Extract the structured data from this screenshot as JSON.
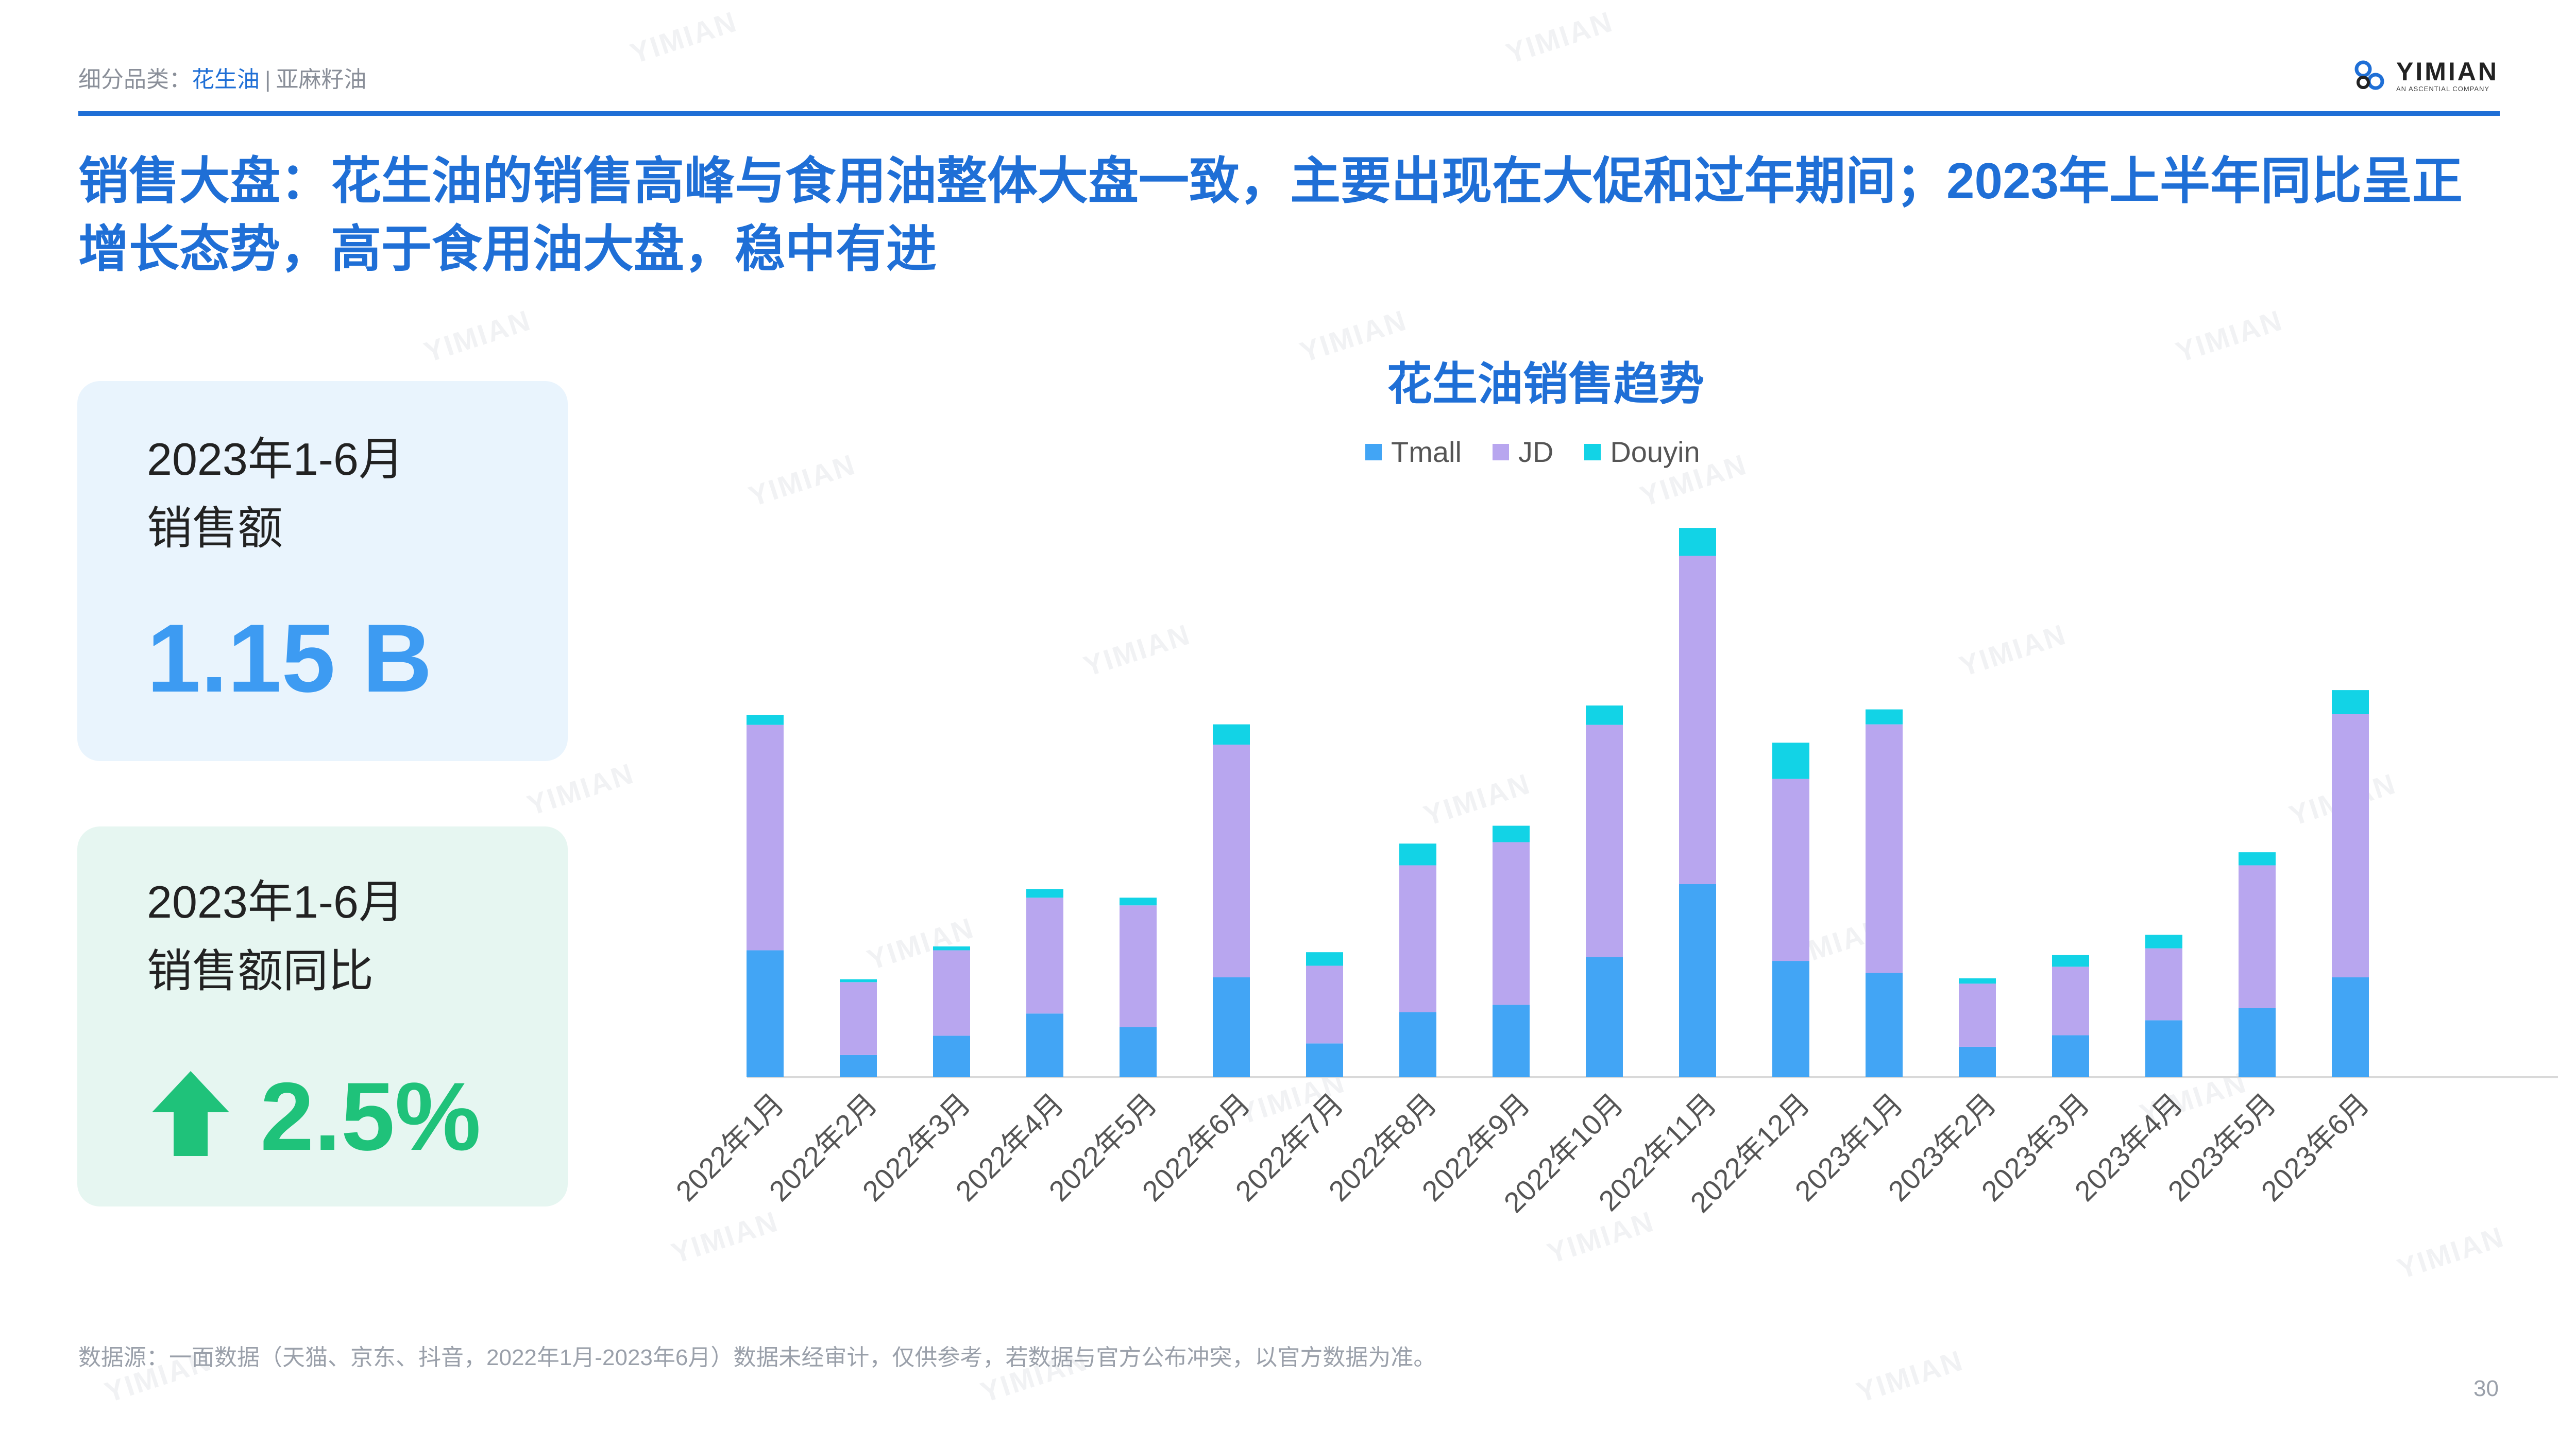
{
  "breadcrumb": {
    "prefix": "细分品类：",
    "active": "花生油",
    "separator": "|",
    "other": "亚麻籽油"
  },
  "brand": {
    "name": "YIMIAN",
    "tagline": "AN ASCENTIAL COMPANY",
    "watermark": "YIMIAN"
  },
  "headline": "销售大盘：花生油的销售高峰与食用油整体大盘一致，主要出现在大促和过年期间；2023年上半年同比呈正增长态势，高于食用油大盘，稳中有进",
  "cards": [
    {
      "label_line1": "2023年1-6月",
      "label_line2": "销售额",
      "value": "1.15 B"
    },
    {
      "label_line1": "2023年1-6月",
      "label_line2": "销售额同比",
      "value": "2.5%",
      "icon": "up-arrow-icon"
    }
  ],
  "colors": {
    "Tmall": "#42a5f5",
    "JD": "#b8a6ef",
    "Douyin": "#12d3e6",
    "accent": "#1f6fd6",
    "positive": "#1fc27a"
  },
  "chart_data": {
    "type": "bar",
    "stacked": true,
    "title": "花生油销售趋势",
    "legend_position": "top",
    "grid": false,
    "categories": [
      "2022年1月",
      "2022年2月",
      "2022年3月",
      "2022年4月",
      "2022年5月",
      "2022年6月",
      "2022年7月",
      "2022年8月",
      "2022年9月",
      "2022年10月",
      "2022年11月",
      "2022年12月",
      "2023年1月",
      "2023年2月",
      "2023年3月",
      "2023年4月",
      "2023年5月",
      "2023年6月"
    ],
    "series": [
      {
        "name": "Tmall",
        "values": [
          263,
          46,
          86,
          132,
          104,
          207,
          70,
          135,
          150,
          249,
          400,
          241,
          216,
          63,
          87,
          118,
          143,
          207
        ]
      },
      {
        "name": "JD",
        "values": [
          467,
          151,
          177,
          240,
          252,
          482,
          161,
          304,
          337,
          481,
          680,
          377,
          515,
          131,
          142,
          149,
          296,
          545
        ]
      },
      {
        "name": "Douyin",
        "values": [
          20,
          6,
          8,
          18,
          16,
          42,
          28,
          45,
          34,
          40,
          58,
          75,
          31,
          11,
          24,
          28,
          27,
          50
        ]
      }
    ],
    "ylim": [
      0,
      1200
    ]
  },
  "source": "数据源：一面数据（天猫、京东、抖音，2022年1月-2023年6月）数据未经审计，仅供参考，若数据与官方公布冲突，以官方数据为准。",
  "page_number": "30"
}
